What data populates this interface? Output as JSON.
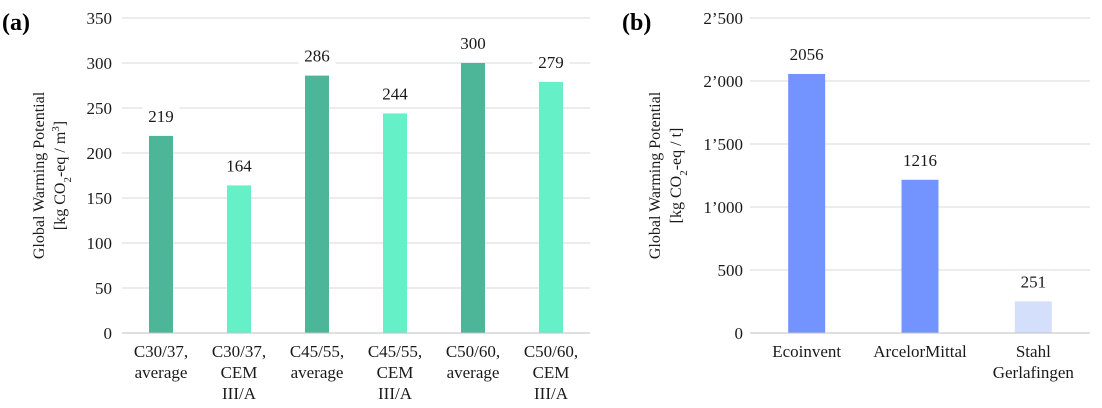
{
  "chart_data": [
    {
      "panel_label": "(a)",
      "type": "bar",
      "categories": [
        [
          "C30/37,",
          "average"
        ],
        [
          "C30/37,",
          "CEM",
          "III/A"
        ],
        [
          "C45/55,",
          "average"
        ],
        [
          "C45/55,",
          "CEM",
          "III/A"
        ],
        [
          "C50/60,",
          "average"
        ],
        [
          "C50/60,",
          "CEM",
          "III/A"
        ]
      ],
      "values": [
        219,
        164,
        286,
        244,
        300,
        279
      ],
      "value_labels": [
        "219",
        "164",
        "286",
        "244",
        "300",
        "279"
      ],
      "colors": [
        "#4db598",
        "#66f0c8",
        "#4db598",
        "#66f0c8",
        "#4db598",
        "#66f0c8"
      ],
      "ylabel_line1": "Global Warming Potential",
      "ylabel_line2": {
        "pre": "[kg CO",
        "sub": "2",
        "mid": "-eq / m",
        "sup": "3",
        "post": "]"
      },
      "ylim": [
        0,
        350
      ],
      "yticks": [
        0,
        50,
        100,
        150,
        200,
        250,
        300,
        350
      ],
      "ytick_labels": [
        "0",
        "50",
        "100",
        "150",
        "200",
        "250",
        "300",
        "350"
      ],
      "grid": true
    },
    {
      "panel_label": "(b)",
      "type": "bar",
      "categories": [
        [
          "Ecoinvent"
        ],
        [
          "ArcelorMittal"
        ],
        [
          "Stahl",
          "Gerlafingen"
        ]
      ],
      "values": [
        2056,
        1216,
        251
      ],
      "value_labels": [
        "2056",
        "1216",
        "251"
      ],
      "colors": [
        "#7394ff",
        "#7394ff",
        "#d4e0fb"
      ],
      "ylabel_line1": "Global Warming Potential",
      "ylabel_line2": {
        "pre": "[kg CO",
        "sub": "2",
        "mid": "-eq / t]",
        "sup": "",
        "post": ""
      },
      "ylim": [
        0,
        2500
      ],
      "yticks": [
        0,
        500,
        1000,
        1500,
        2000,
        2500
      ],
      "ytick_labels": [
        "0",
        "500",
        "1’000",
        "1’500",
        "2’000",
        "2’500"
      ],
      "grid": true
    }
  ]
}
